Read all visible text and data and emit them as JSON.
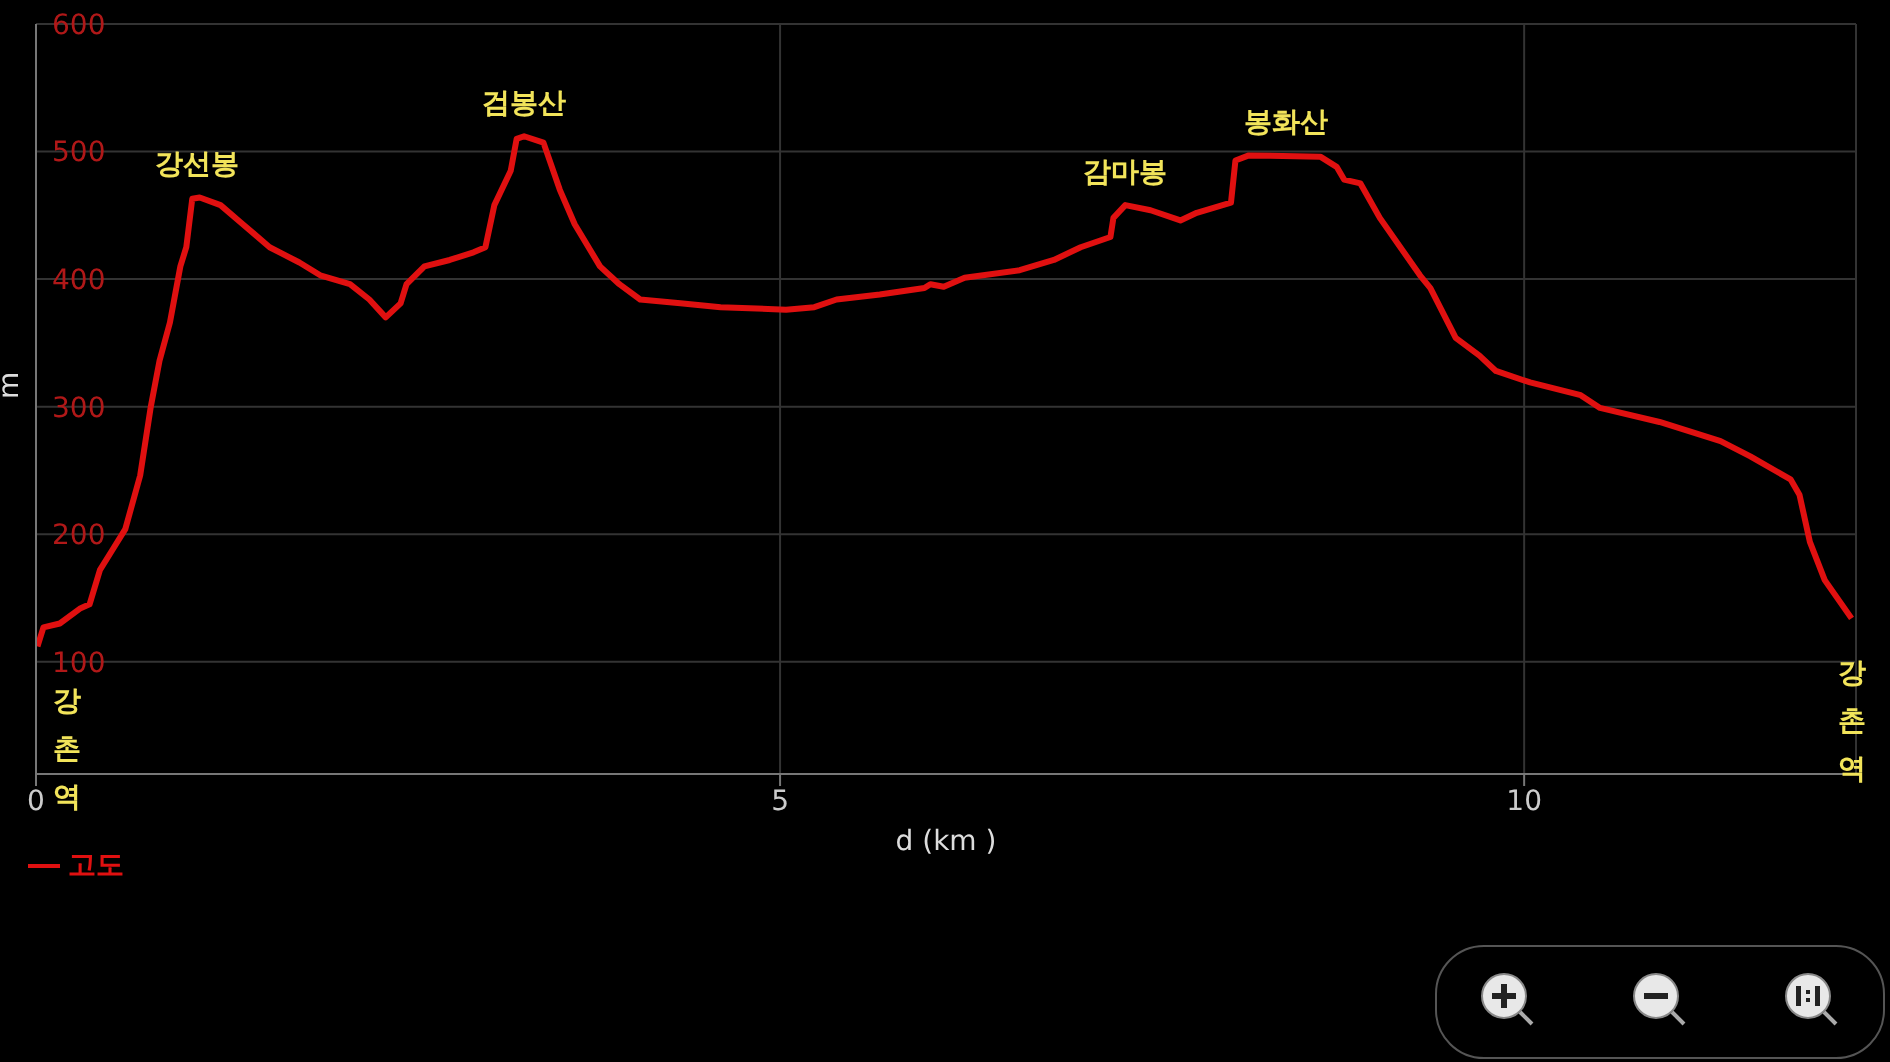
{
  "chart_data": {
    "type": "line",
    "xlabel": "d (km )",
    "ylabel": "m",
    "xlim": [
      0,
      12.23
    ],
    "xticks": [
      0,
      5,
      10
    ],
    "ylim": [
      12,
      600
    ],
    "yticks": [
      100,
      200,
      300,
      400,
      500,
      600
    ],
    "grid": true,
    "legend": "bottom left",
    "marker": "none",
    "line_style": "solid",
    "series": [
      {
        "name": "고도",
        "color": "#e01010",
        "x": [
          0.01,
          0.05,
          0.16,
          0.3,
          0.36,
          0.43,
          0.51,
          0.6,
          0.7,
          0.77,
          0.83,
          0.9,
          0.97,
          1.01,
          1.05,
          1.1,
          1.24,
          1.37,
          1.57,
          1.77,
          1.91,
          2.11,
          2.24,
          2.35,
          2.45,
          2.49,
          2.61,
          2.78,
          2.94,
          3.02,
          3.08,
          3.19,
          3.23,
          3.28,
          3.41,
          3.52,
          3.62,
          3.79,
          3.92,
          4.06,
          4.33,
          4.6,
          5.04,
          5.23,
          5.38,
          5.67,
          5.97,
          6.01,
          6.1,
          6.24,
          6.61,
          6.84,
          7.02,
          7.22,
          7.24,
          7.32,
          7.49,
          7.69,
          7.8,
          8.03,
          8.06,
          8.15,
          8.63,
          8.74,
          8.79,
          8.9,
          9.03,
          9.3,
          9.37,
          9.54,
          9.7,
          9.81,
          10.04,
          10.38,
          10.51,
          10.91,
          11.32,
          11.52,
          11.79,
          11.85,
          11.92,
          12.02,
          12.2
        ],
        "values": [
          112,
          127,
          130,
          142,
          145,
          172,
          187,
          204,
          246,
          299,
          336,
          366,
          410,
          425,
          463,
          464,
          458,
          445,
          425,
          413,
          403,
          396,
          384,
          370,
          381,
          396,
          410,
          415,
          421,
          425,
          458,
          485,
          510,
          512,
          507,
          470,
          443,
          410,
          396,
          384,
          381,
          378,
          376,
          378,
          384,
          388,
          393,
          396,
          394,
          401,
          407,
          415,
          425,
          433,
          448,
          458,
          454,
          446,
          452,
          460,
          493,
          497,
          496,
          488,
          478,
          475,
          448,
          403,
          393,
          354,
          340,
          328,
          319,
          309,
          299,
          288,
          273,
          261,
          243,
          231,
          194,
          164,
          134
        ]
      }
    ],
    "annotations": [
      {
        "text": "강선봉",
        "x": 1.08,
        "y": 464
      },
      {
        "text": "검봉산",
        "x": 3.28,
        "y": 512
      },
      {
        "text": "감마봉",
        "x": 7.32,
        "y": 458
      },
      {
        "text": "봉화산",
        "x": 8.4,
        "y": 497
      },
      "강촌역",
      "강촌역"
    ]
  }
}
